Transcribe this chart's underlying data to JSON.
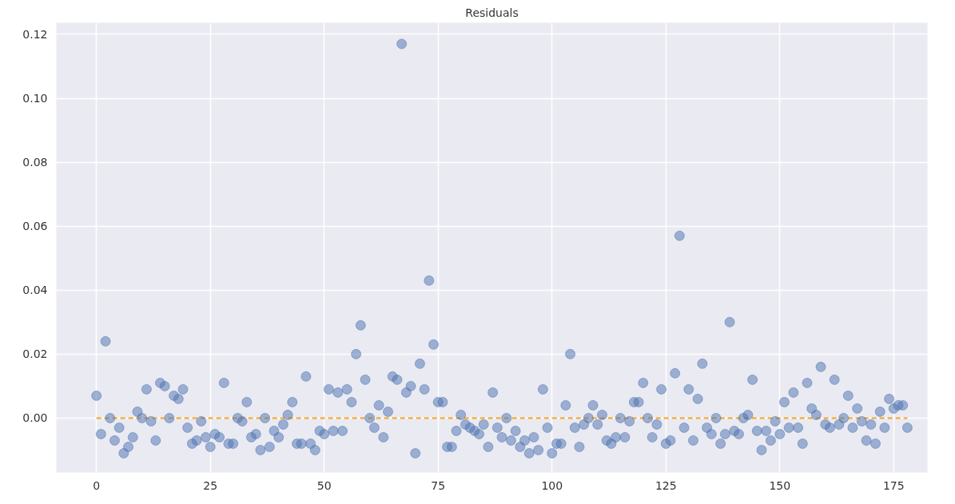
{
  "chart_data": {
    "type": "scatter",
    "title": "Residuals",
    "x": [
      0,
      1,
      2,
      3,
      4,
      5,
      6,
      7,
      8,
      9,
      10,
      11,
      12,
      13,
      14,
      15,
      16,
      17,
      18,
      19,
      20,
      21,
      22,
      23,
      24,
      25,
      26,
      27,
      28,
      29,
      30,
      31,
      32,
      33,
      34,
      35,
      36,
      37,
      38,
      39,
      40,
      41,
      42,
      43,
      44,
      45,
      46,
      47,
      48,
      49,
      50,
      51,
      52,
      53,
      54,
      55,
      56,
      57,
      58,
      59,
      60,
      61,
      62,
      63,
      64,
      65,
      66,
      67,
      68,
      69,
      70,
      71,
      72,
      73,
      74,
      75,
      76,
      77,
      78,
      79,
      80,
      81,
      82,
      83,
      84,
      85,
      86,
      87,
      88,
      89,
      90,
      91,
      92,
      93,
      94,
      95,
      96,
      97,
      98,
      99,
      100,
      101,
      102,
      103,
      104,
      105,
      106,
      107,
      108,
      109,
      110,
      111,
      112,
      113,
      114,
      115,
      116,
      117,
      118,
      119,
      120,
      121,
      122,
      123,
      124,
      125,
      126,
      127,
      128,
      129,
      130,
      131,
      132,
      133,
      134,
      135,
      136,
      137,
      138,
      139,
      140,
      141,
      142,
      143,
      144,
      145,
      146,
      147,
      148,
      149,
      150,
      151,
      152,
      153,
      154,
      155,
      156,
      157,
      158,
      159,
      160,
      161,
      162,
      163,
      164,
      165,
      166,
      167,
      168,
      169,
      170,
      171,
      172,
      173,
      174,
      175,
      176,
      177,
      178
    ],
    "series": [
      {
        "color": "#4c72b0",
        "values": [
          0.007,
          -0.005,
          0.024,
          0.0,
          -0.007,
          -0.003,
          -0.011,
          -0.009,
          -0.006,
          0.002,
          0.0,
          0.009,
          -0.001,
          -0.007,
          0.011,
          0.01,
          0.0,
          0.007,
          0.006,
          0.009,
          -0.003,
          -0.008,
          -0.007,
          -0.001,
          -0.006,
          -0.009,
          -0.005,
          -0.006,
          0.011,
          -0.008,
          -0.008,
          0.0,
          -0.001,
          0.005,
          -0.006,
          -0.005,
          -0.01,
          0.0,
          -0.009,
          -0.004,
          -0.006,
          -0.002,
          0.001,
          0.005,
          -0.008,
          -0.008,
          0.013,
          -0.008,
          -0.01,
          -0.004,
          -0.005,
          0.009,
          -0.004,
          0.008,
          -0.004,
          0.009,
          0.005,
          0.02,
          0.029,
          0.012,
          0.0,
          -0.003,
          0.004,
          -0.006,
          0.002,
          0.013,
          0.012,
          0.117,
          0.008,
          0.01,
          -0.011,
          0.017,
          0.009,
          0.043,
          0.023,
          0.005,
          0.005,
          -0.009,
          -0.009,
          -0.004,
          0.001,
          -0.002,
          -0.003,
          -0.004,
          -0.005,
          -0.002,
          -0.009,
          0.008,
          -0.003,
          -0.006,
          0.0,
          -0.007,
          -0.004,
          -0.009,
          -0.007,
          -0.011,
          -0.006,
          -0.01,
          0.009,
          -0.003,
          -0.011,
          -0.008,
          -0.008,
          0.004,
          0.02,
          -0.003,
          -0.009,
          -0.002,
          0.0,
          0.004,
          -0.002,
          0.001,
          -0.007,
          -0.008,
          -0.006,
          0.0,
          -0.006,
          -0.001,
          0.005,
          0.005,
          0.011,
          0.0,
          -0.006,
          -0.002,
          0.009,
          -0.008,
          -0.007,
          0.014,
          0.057,
          -0.003,
          0.009,
          -0.007,
          0.006,
          0.017,
          -0.003,
          -0.005,
          0.0,
          -0.008,
          -0.005,
          0.03,
          -0.004,
          -0.005,
          0.0,
          0.001,
          0.012,
          -0.004,
          -0.01,
          -0.004,
          -0.007,
          -0.001,
          -0.005,
          0.005,
          -0.003,
          0.008,
          -0.003,
          -0.008,
          0.011,
          0.003,
          0.001,
          0.016,
          -0.002,
          -0.003,
          0.012,
          -0.002,
          0.0,
          0.007,
          -0.003,
          0.003,
          -0.001,
          -0.007,
          -0.002,
          -0.008,
          0.002,
          -0.003,
          0.006,
          0.003,
          0.004,
          0.004,
          -0.003
        ]
      }
    ],
    "ref_lines": [
      {
        "axis": "y",
        "value": 0,
        "color": "#f5a31f",
        "line_style": "dashed"
      }
    ],
    "xlim": [
      -8.8,
      182.4
    ],
    "ylim": [
      -0.017,
      0.1236
    ],
    "xticks": [
      0,
      25,
      50,
      75,
      100,
      125,
      150,
      175
    ],
    "yticks": [
      {
        "value": 0,
        "label": "0.00"
      },
      {
        "value": 0.02,
        "label": "0.02"
      },
      {
        "value": 0.04,
        "label": "0.04"
      },
      {
        "value": 0.06,
        "label": "0.06"
      },
      {
        "value": 0.08,
        "label": "0.08"
      },
      {
        "value": 0.1,
        "label": "0.10"
      },
      {
        "value": 0.12,
        "label": "0.12"
      }
    ],
    "grid": true,
    "marker": "circle"
  }
}
